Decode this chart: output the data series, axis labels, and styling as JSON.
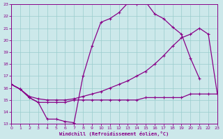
{
  "bg_color": "#cce8ea",
  "line_color": "#880088",
  "grid_color": "#99cccc",
  "xlabel": "Windchill (Refroidissement éolien,°C)",
  "xlim": [
    0,
    23
  ],
  "ylim": [
    13,
    23
  ],
  "xticks": [
    0,
    1,
    2,
    3,
    4,
    5,
    6,
    7,
    8,
    9,
    10,
    11,
    12,
    13,
    14,
    15,
    16,
    17,
    18,
    19,
    20,
    21,
    22,
    23
  ],
  "yticks": [
    13,
    14,
    15,
    16,
    17,
    18,
    19,
    20,
    21,
    22,
    23
  ],
  "curve1_x": [
    0,
    1,
    2,
    3,
    4,
    5,
    6,
    7,
    8,
    9,
    10,
    11,
    12,
    13,
    14,
    15,
    16,
    17,
    18,
    19,
    20,
    21
  ],
  "curve1_y": [
    16.3,
    15.9,
    15.2,
    14.8,
    13.4,
    13.4,
    13.2,
    13.1,
    17.0,
    19.5,
    21.5,
    21.8,
    22.3,
    23.1,
    23.0,
    23.2,
    22.2,
    21.8,
    21.1,
    20.5,
    18.5,
    16.8
  ],
  "curve2_x": [
    0,
    1,
    2,
    3,
    4,
    5,
    6,
    7,
    8,
    9,
    10,
    11,
    12,
    13,
    14,
    15,
    16,
    17,
    18,
    19,
    20,
    21,
    22,
    23
  ],
  "curve2_y": [
    16.3,
    15.9,
    15.3,
    15.1,
    15.0,
    15.0,
    15.0,
    15.1,
    15.3,
    15.5,
    15.7,
    16.0,
    16.3,
    16.6,
    17.0,
    17.4,
    18.0,
    18.7,
    19.5,
    20.2,
    20.5,
    21.0,
    20.5,
    15.5
  ],
  "curve3_x": [
    0,
    1,
    2,
    3,
    4,
    5,
    6,
    7,
    8,
    9,
    10,
    11,
    12,
    13,
    14,
    15,
    16,
    17,
    18,
    19,
    20,
    21,
    22,
    23
  ],
  "curve3_y": [
    16.3,
    15.9,
    15.2,
    14.8,
    14.8,
    14.8,
    14.8,
    15.0,
    15.0,
    15.0,
    15.0,
    15.0,
    15.0,
    15.0,
    15.0,
    15.2,
    15.2,
    15.2,
    15.2,
    15.2,
    15.5,
    15.5,
    15.5,
    15.5
  ]
}
